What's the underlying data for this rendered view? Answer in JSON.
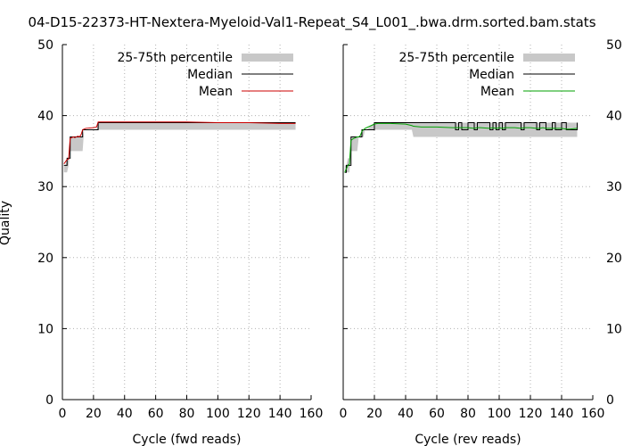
{
  "title": "04-D15-22373-HT-Nextera-Myeloid-Val1-Repeat_S4_L001_.bwa.drm.sorted.bam.stats",
  "ylabel": "Quality",
  "legend": {
    "band": "25-75th percentile",
    "median": "Median",
    "mean": "Mean"
  },
  "colors": {
    "band": "#c8c8c8",
    "median": "#000000",
    "mean_fwd": "#cc0000",
    "mean_rev": "#00a000",
    "grid": "#b0b0b0"
  },
  "chart_data": [
    {
      "type": "line",
      "panel": "fwd",
      "xlabel": "Cycle (fwd reads)",
      "xlim": [
        0,
        160
      ],
      "ylim": [
        0,
        50
      ],
      "x_ticks": [
        0,
        20,
        40,
        60,
        80,
        100,
        120,
        140,
        160
      ],
      "y_ticks": [
        0,
        10,
        20,
        30,
        40,
        50
      ],
      "grid": true,
      "legend_position": "top-right",
      "x": [
        1,
        2,
        3,
        4,
        5,
        6,
        7,
        8,
        9,
        10,
        11,
        12,
        13,
        14,
        15,
        20,
        22,
        23,
        30,
        40,
        60,
        80,
        100,
        120,
        140,
        150
      ],
      "q25": [
        32,
        32,
        32,
        33,
        35,
        35,
        35,
        35,
        35,
        35,
        35,
        35,
        35,
        38,
        38,
        38,
        38,
        38,
        38,
        38,
        38,
        38,
        38,
        38,
        38,
        38
      ],
      "q75": [
        33,
        33,
        34,
        34,
        37,
        37,
        37,
        37,
        37,
        37,
        37,
        37,
        37,
        38,
        38,
        38,
        38,
        39,
        39,
        39,
        39,
        39,
        39,
        39,
        39,
        39
      ],
      "median": [
        33,
        33,
        34,
        34,
        37,
        37,
        37,
        37,
        37,
        37,
        37,
        37,
        38,
        38,
        38,
        38,
        38,
        39,
        39,
        39,
        39,
        39,
        39,
        39,
        39,
        39
      ],
      "mean": [
        33.2,
        33.5,
        33.8,
        33.9,
        36.8,
        36.9,
        37,
        36.9,
        37,
        37.1,
        37,
        37.3,
        38,
        38.1,
        38.2,
        38.3,
        38.4,
        39.1,
        39.1,
        39.1,
        39.1,
        39.1,
        39.0,
        39.0,
        38.9,
        38.9
      ]
    },
    {
      "type": "line",
      "panel": "rev",
      "xlabel": "Cycle (rev reads)",
      "xlim": [
        0,
        160
      ],
      "ylim": [
        0,
        50
      ],
      "x_ticks": [
        0,
        20,
        40,
        60,
        80,
        100,
        120,
        140,
        160
      ],
      "y_ticks": [
        0,
        10,
        20,
        30,
        40,
        50
      ],
      "grid": true,
      "legend_position": "top-right",
      "x": [
        1,
        2,
        3,
        4,
        5,
        6,
        7,
        8,
        9,
        10,
        11,
        12,
        13,
        14,
        15,
        20,
        22,
        30,
        40,
        44,
        45,
        50,
        60,
        70,
        72,
        74,
        76,
        80,
        84,
        86,
        88,
        94,
        96,
        98,
        100,
        102,
        104,
        110,
        114,
        116,
        120,
        124,
        126,
        128,
        130,
        134,
        136,
        140,
        143,
        145,
        150
      ],
      "q25": [
        32,
        32,
        32,
        32,
        35,
        35,
        35,
        35,
        35,
        37,
        37,
        37,
        37,
        38,
        38,
        38,
        38,
        38,
        38,
        38,
        37,
        37,
        37,
        37,
        37,
        37,
        37,
        37,
        37,
        37,
        37,
        37,
        37,
        37,
        37,
        37,
        37,
        37,
        37,
        37,
        37,
        37,
        37,
        37,
        37,
        37,
        37,
        37,
        37,
        37,
        37
      ],
      "q75": [
        33,
        33,
        34,
        34,
        37,
        37,
        37,
        37,
        37,
        37,
        37,
        38,
        38,
        38,
        38,
        39,
        39,
        39,
        39,
        39,
        39,
        39,
        39,
        39,
        39,
        39,
        39,
        39,
        39,
        39,
        39,
        39,
        39,
        39,
        39,
        39,
        39,
        39,
        39,
        39,
        39,
        39,
        39,
        39,
        39,
        39,
        39,
        39,
        39,
        39,
        39
      ],
      "median": [
        32,
        33,
        33,
        33,
        37,
        37,
        37,
        37,
        37,
        37,
        37,
        38,
        38,
        38,
        38,
        39,
        39,
        39,
        39,
        39,
        39,
        39,
        39,
        39,
        38,
        39,
        38,
        39,
        38,
        39,
        39,
        38,
        39,
        38,
        39,
        38,
        39,
        39,
        38,
        39,
        39,
        38,
        39,
        39,
        38,
        39,
        38,
        39,
        38,
        38,
        39
      ],
      "mean": [
        32,
        32.5,
        33,
        33.2,
        36.5,
        36.7,
        36.8,
        36.9,
        37,
        37,
        37.2,
        37.8,
        38,
        38.2,
        38.3,
        38.8,
        38.9,
        38.9,
        38.8,
        38.6,
        38.5,
        38.4,
        38.4,
        38.3,
        38.3,
        38.3,
        38.3,
        38.3,
        38.2,
        38.3,
        38.3,
        38.2,
        38.3,
        38.2,
        38.3,
        38.2,
        38.3,
        38.3,
        38.2,
        38.3,
        38.3,
        38.2,
        38.2,
        38.3,
        38.2,
        38.2,
        38.2,
        38.2,
        38.1,
        38.1,
        38.2
      ]
    }
  ]
}
